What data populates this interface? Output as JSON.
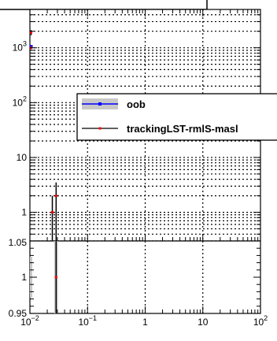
{
  "chart_data": [
    {
      "panel": "main",
      "type": "scatter",
      "title": "",
      "xlabel": "",
      "ylabel": "",
      "x_scale": "log",
      "y_scale": "log",
      "xlim": [
        0.01,
        100
      ],
      "ylim": [
        0.3,
        5000
      ],
      "grid": true,
      "legend_placement": "top-right",
      "y_tick_labels": [
        {
          "value": 1,
          "label": "1",
          "sup": ""
        },
        {
          "value": 10,
          "label": "10",
          "sup": ""
        },
        {
          "value": 100,
          "label": "10",
          "sup": "2"
        },
        {
          "value": 1000,
          "label": "10",
          "sup": "3"
        }
      ],
      "series": [
        {
          "name": "oob",
          "color": "#0000ff",
          "band_color": "#c8c8c8",
          "points": [
            {
              "x": 0.0105,
              "y": 1050,
              "ylo": 1000,
              "yhi": 1100,
              "xlo": 0.01,
              "xhi": 0.011
            }
          ]
        },
        {
          "name": "trackingLST-rmlS-masl",
          "color": "#ff0000",
          "band_color": "#000000",
          "points": [
            {
              "x": 0.0105,
              "y": 1900,
              "ylo": 1700,
              "yhi": 2100,
              "xlo": 0.01,
              "xhi": 0.011
            },
            {
              "x": 0.0105,
              "y": 1000,
              "ylo": 950,
              "yhi": 1050,
              "xlo": 0.01,
              "xhi": 0.011
            },
            {
              "x": 0.0245,
              "y": 1,
              "ylo": 0.3,
              "yhi": 2,
              "xlo": 0.0225,
              "xhi": 0.0265
            },
            {
              "x": 0.0285,
              "y": 2,
              "ylo": 0.3,
              "yhi": 3.5,
              "xlo": 0.0265,
              "xhi": 0.0305
            }
          ]
        }
      ]
    },
    {
      "panel": "ratio",
      "type": "scatter",
      "title": "",
      "xlabel": "",
      "ylabel": "",
      "x_scale": "log",
      "y_scale": "linear",
      "xlim": [
        0.01,
        100
      ],
      "ylim": [
        0.95,
        1.05
      ],
      "grid": true,
      "y_tick_labels": [
        {
          "value": 0.95,
          "label": "0.95"
        },
        {
          "value": 1,
          "label": "1"
        },
        {
          "value": 1.05,
          "label": "1.05"
        }
      ],
      "x_tick_labels": [
        {
          "value": 0.01,
          "label": "10",
          "sup": "−2"
        },
        {
          "value": 0.1,
          "label": "10",
          "sup": "−1"
        },
        {
          "value": 1,
          "label": "1",
          "sup": ""
        },
        {
          "value": 10,
          "label": "10",
          "sup": ""
        },
        {
          "value": 100,
          "label": "10",
          "sup": "2"
        }
      ],
      "bands": [
        {
          "x0": 0.01,
          "x1": 0.011,
          "y0": 0.972,
          "y1": 1.028,
          "color": "#c8c8c8"
        },
        {
          "x0": 0.0265,
          "x1": 0.0305,
          "y0": 0.95,
          "y1": 1.05,
          "color": "#c8c8c8"
        }
      ],
      "series": [
        {
          "name": "trackingLST-rmlS-masl",
          "color": "#ff0000",
          "points": [
            {
              "x": 0.0285,
              "y": 1.0,
              "ylo": 0.95,
              "yhi": 1.05
            }
          ]
        }
      ]
    }
  ]
}
